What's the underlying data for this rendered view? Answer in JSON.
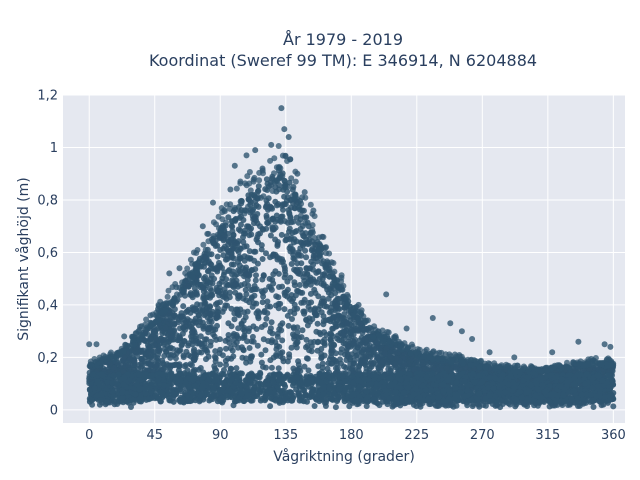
{
  "chart_data": {
    "type": "scatter",
    "title_line1": "År 1979 - 2019",
    "title_line2": "Koordinat (Sweref 99 TM): E 346914, N 6204884",
    "xlabel": "Vågriktning (grader)",
    "ylabel": "Signifikant våghöjd (m)",
    "xlim": [
      -18,
      368
    ],
    "ylim": [
      -0.05,
      1.2
    ],
    "x_ticks": [
      0,
      45,
      90,
      135,
      180,
      225,
      270,
      315,
      360
    ],
    "x_tick_labels": [
      "0",
      "45",
      "90",
      "135",
      "180",
      "225",
      "270",
      "315",
      "360"
    ],
    "y_ticks": [
      0,
      0.2,
      0.4,
      0.6,
      0.8,
      1.0,
      1.2
    ],
    "y_tick_labels": [
      "0",
      "0,2",
      "0,4",
      "0,6",
      "0,8",
      "1",
      "1,2"
    ],
    "grid": true,
    "marker_color": "#2f5570",
    "background_color": "#e5e8f0",
    "envelope": [
      [
        0,
        0.17
      ],
      [
        15,
        0.2
      ],
      [
        30,
        0.26
      ],
      [
        45,
        0.35
      ],
      [
        60,
        0.45
      ],
      [
        75,
        0.57
      ],
      [
        90,
        0.7
      ],
      [
        105,
        0.8
      ],
      [
        120,
        0.87
      ],
      [
        130,
        0.92
      ],
      [
        140,
        0.86
      ],
      [
        150,
        0.74
      ],
      [
        165,
        0.55
      ],
      [
        180,
        0.4
      ],
      [
        195,
        0.3
      ],
      [
        210,
        0.26
      ],
      [
        225,
        0.22
      ],
      [
        240,
        0.2
      ],
      [
        255,
        0.19
      ],
      [
        270,
        0.17
      ],
      [
        285,
        0.16
      ],
      [
        300,
        0.15
      ],
      [
        315,
        0.16
      ],
      [
        330,
        0.17
      ],
      [
        345,
        0.18
      ],
      [
        360,
        0.18
      ]
    ],
    "outliers": [
      [
        0,
        0.25
      ],
      [
        5,
        0.25
      ],
      [
        24,
        0.28
      ],
      [
        42,
        0.36
      ],
      [
        55,
        0.52
      ],
      [
        62,
        0.54
      ],
      [
        78,
        0.7
      ],
      [
        85,
        0.79
      ],
      [
        97,
        0.84
      ],
      [
        100,
        0.93
      ],
      [
        108,
        0.97
      ],
      [
        114,
        0.99
      ],
      [
        119,
        0.92
      ],
      [
        125,
        1.01
      ],
      [
        132,
        1.15
      ],
      [
        134,
        1.07
      ],
      [
        137,
        1.04
      ],
      [
        143,
        0.9
      ],
      [
        148,
        0.83
      ],
      [
        154,
        0.76
      ],
      [
        160,
        0.66
      ],
      [
        173,
        0.47
      ],
      [
        185,
        0.4
      ],
      [
        204,
        0.44
      ],
      [
        218,
        0.31
      ],
      [
        236,
        0.35
      ],
      [
        248,
        0.33
      ],
      [
        256,
        0.3
      ],
      [
        263,
        0.27
      ],
      [
        275,
        0.22
      ],
      [
        292,
        0.2
      ],
      [
        318,
        0.22
      ],
      [
        336,
        0.26
      ],
      [
        354,
        0.25
      ],
      [
        358,
        0.24
      ]
    ]
  }
}
